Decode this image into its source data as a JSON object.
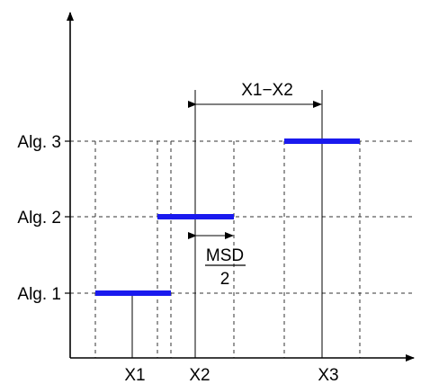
{
  "diagram": {
    "y_labels": [
      "Alg. 3",
      "Alg. 2",
      "Alg. 1"
    ],
    "x_labels": [
      "X1",
      "X2",
      "X3"
    ],
    "difference_label": "X1−X2",
    "msd_fraction": {
      "numerator": "MSD",
      "denominator": "2"
    },
    "colors": {
      "interval": "#1a1aee",
      "axis": "#000000",
      "grid": "#333333"
    }
  }
}
